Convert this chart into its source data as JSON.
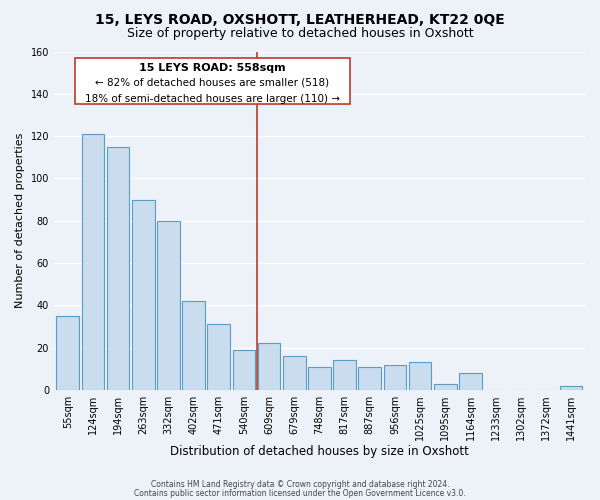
{
  "title": "15, LEYS ROAD, OXSHOTT, LEATHERHEAD, KT22 0QE",
  "subtitle": "Size of property relative to detached houses in Oxshott",
  "xlabel": "Distribution of detached houses by size in Oxshott",
  "ylabel": "Number of detached properties",
  "bar_labels": [
    "55sqm",
    "124sqm",
    "194sqm",
    "263sqm",
    "332sqm",
    "402sqm",
    "471sqm",
    "540sqm",
    "609sqm",
    "679sqm",
    "748sqm",
    "817sqm",
    "887sqm",
    "956sqm",
    "1025sqm",
    "1095sqm",
    "1164sqm",
    "1233sqm",
    "1302sqm",
    "1372sqm",
    "1441sqm"
  ],
  "bar_values": [
    35,
    121,
    115,
    90,
    80,
    42,
    31,
    19,
    22,
    16,
    11,
    14,
    11,
    12,
    13,
    3,
    8,
    0,
    0,
    0,
    2
  ],
  "bar_color": "#c9ddef",
  "bar_edge_color": "#5b9bc8",
  "ylim": [
    0,
    160
  ],
  "yticks": [
    0,
    20,
    40,
    60,
    80,
    100,
    120,
    140,
    160
  ],
  "vline_x": 7.5,
  "vline_color": "#c0392b",
  "annotation_title": "15 LEYS ROAD: 558sqm",
  "annotation_line1": "← 82% of detached houses are smaller (518)",
  "annotation_line2": "18% of semi-detached houses are larger (110) →",
  "annotation_box_color": "#ffffff",
  "annotation_box_edge": "#c0392b",
  "footer1": "Contains HM Land Registry data © Crown copyright and database right 2024.",
  "footer2": "Contains public sector information licensed under the Open Government Licence v3.0.",
  "bg_color": "#edf2f9",
  "grid_color": "#ffffff",
  "title_fontsize": 10,
  "subtitle_fontsize": 9,
  "tick_fontsize": 7,
  "ylabel_fontsize": 8,
  "xlabel_fontsize": 8.5
}
